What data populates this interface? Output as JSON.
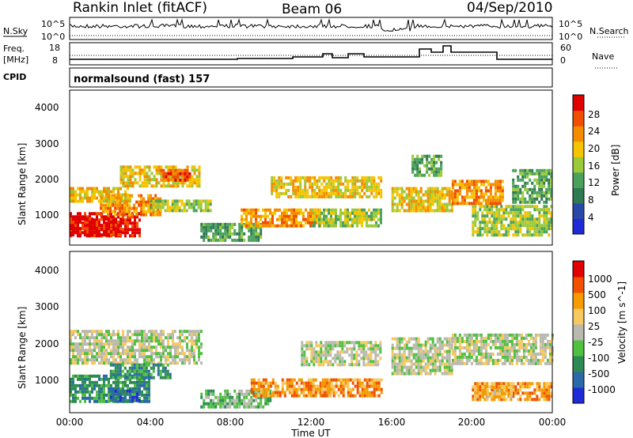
{
  "header": {
    "station": "Rankin Inlet (fitACF)",
    "beam": "Beam 06",
    "date": "04/Sep/2010"
  },
  "strips": {
    "nsky_label": "N.Sky",
    "nsearch_label": "N.Search",
    "noise_tick_top": "10^5",
    "noise_tick_bottom": "10^0",
    "freq_label": "Freq.",
    "freq_unit": "[MHz]",
    "freq_ticks": [
      "18",
      "8"
    ],
    "nave_label": "Nave",
    "nave_ticks": [
      "60",
      "0"
    ],
    "cpid_label": "CPID",
    "cpid_value": "normalsound (fast) 157"
  },
  "colors": {
    "power": [
      "#1f2bd6",
      "#2a48a8",
      "#2f7a52",
      "#4aa25a",
      "#9ac93a",
      "#f5c400",
      "#f58c00",
      "#f04e00",
      "#e00000"
    ],
    "velocity": [
      "#e00000",
      "#f05000",
      "#f59a00",
      "#f5c860",
      "#b9b9b0",
      "#50c040",
      "#2d8a55",
      "#2a6aa8",
      "#1f2bd6"
    ]
  },
  "chart_data": [
    {
      "type": "heatmap",
      "name": "power-panel",
      "xlabel": "",
      "ylabel": "Slant Range [km]",
      "xlim": [
        0,
        24
      ],
      "ylim": [
        180,
        4500
      ],
      "yticks": [
        "4000",
        "3000",
        "2000",
        "1000"
      ],
      "colorbar_label": "Power [dB]",
      "colorbar_ticks": [
        "28",
        "24",
        "20",
        "16",
        "12",
        "8",
        "4"
      ],
      "regions": [
        {
          "x0": 0.0,
          "x1": 3.5,
          "y0": 450,
          "y1": 1100,
          "level": 8
        },
        {
          "x0": 0.0,
          "x1": 2.5,
          "y0": 500,
          "y1": 950,
          "level": 8
        },
        {
          "x0": 1.5,
          "x1": 4.5,
          "y0": 1000,
          "y1": 1600,
          "level": 6
        },
        {
          "x0": 0.0,
          "x1": 3.0,
          "y0": 1400,
          "y1": 1800,
          "level": 5
        },
        {
          "x0": 2.5,
          "x1": 6.5,
          "y0": 1800,
          "y1": 2400,
          "level": 5
        },
        {
          "x0": 4.5,
          "x1": 6.0,
          "y0": 2000,
          "y1": 2300,
          "level": 7
        },
        {
          "x0": 4.0,
          "x1": 7.0,
          "y0": 1100,
          "y1": 1450,
          "level": 4
        },
        {
          "x0": 6.5,
          "x1": 9.5,
          "y0": 350,
          "y1": 800,
          "level": 3
        },
        {
          "x0": 8.5,
          "x1": 12.5,
          "y0": 700,
          "y1": 1200,
          "level": 6
        },
        {
          "x0": 10.0,
          "x1": 15.5,
          "y0": 1500,
          "y1": 2100,
          "level": 5
        },
        {
          "x0": 12.0,
          "x1": 15.5,
          "y0": 700,
          "y1": 1200,
          "level": 4
        },
        {
          "x0": 16.0,
          "x1": 19.0,
          "y0": 1100,
          "y1": 1800,
          "level": 5
        },
        {
          "x0": 17.0,
          "x1": 18.5,
          "y0": 2100,
          "y1": 2700,
          "level": 3
        },
        {
          "x0": 19.0,
          "x1": 21.5,
          "y0": 1300,
          "y1": 2000,
          "level": 6
        },
        {
          "x0": 20.0,
          "x1": 24.0,
          "y0": 500,
          "y1": 1300,
          "level": 4
        },
        {
          "x0": 22.0,
          "x1": 24.0,
          "y0": 1400,
          "y1": 2300,
          "level": 3
        }
      ]
    },
    {
      "type": "heatmap",
      "name": "velocity-panel",
      "xlabel": "Time UT",
      "ylabel": "Slant Range [km]",
      "xlim": [
        0,
        24
      ],
      "ylim": [
        180,
        4500
      ],
      "xticks": [
        "00:00",
        "04:00",
        "08:00",
        "12:00",
        "16:00",
        "20:00",
        "00:00"
      ],
      "yticks": [
        "4000",
        "3000",
        "2000",
        "1000"
      ],
      "colorbar_label": "Velocity [m s^-1]",
      "colorbar_ticks": [
        "1000",
        "500",
        "100",
        "25",
        "-25",
        "-100",
        "-500",
        "-1000"
      ],
      "regions": [
        {
          "x0": 0.0,
          "x1": 6.5,
          "y0": 1500,
          "y1": 2400,
          "level": 4
        },
        {
          "x0": 0.0,
          "x1": 4.0,
          "y0": 500,
          "y1": 1200,
          "level": 6
        },
        {
          "x0": 2.0,
          "x1": 5.0,
          "y0": 1100,
          "y1": 1500,
          "level": 6
        },
        {
          "x0": 2.0,
          "x1": 3.5,
          "y0": 500,
          "y1": 800,
          "level": 7
        },
        {
          "x0": 6.5,
          "x1": 10.0,
          "y0": 300,
          "y1": 800,
          "level": 5
        },
        {
          "x0": 9.0,
          "x1": 13.0,
          "y0": 600,
          "y1": 1100,
          "level": 2
        },
        {
          "x0": 11.5,
          "x1": 15.5,
          "y0": 1500,
          "y1": 2100,
          "level": 4
        },
        {
          "x0": 12.5,
          "x1": 15.5,
          "y0": 600,
          "y1": 1100,
          "level": 2
        },
        {
          "x0": 16.0,
          "x1": 19.0,
          "y0": 1200,
          "y1": 2200,
          "level": 4
        },
        {
          "x0": 19.0,
          "x1": 24.0,
          "y0": 1500,
          "y1": 2300,
          "level": 4
        },
        {
          "x0": 20.0,
          "x1": 24.0,
          "y0": 500,
          "y1": 1000,
          "level": 2
        },
        {
          "x0": 20.5,
          "x1": 22.0,
          "y0": 600,
          "y1": 900,
          "level": 3
        }
      ]
    }
  ]
}
